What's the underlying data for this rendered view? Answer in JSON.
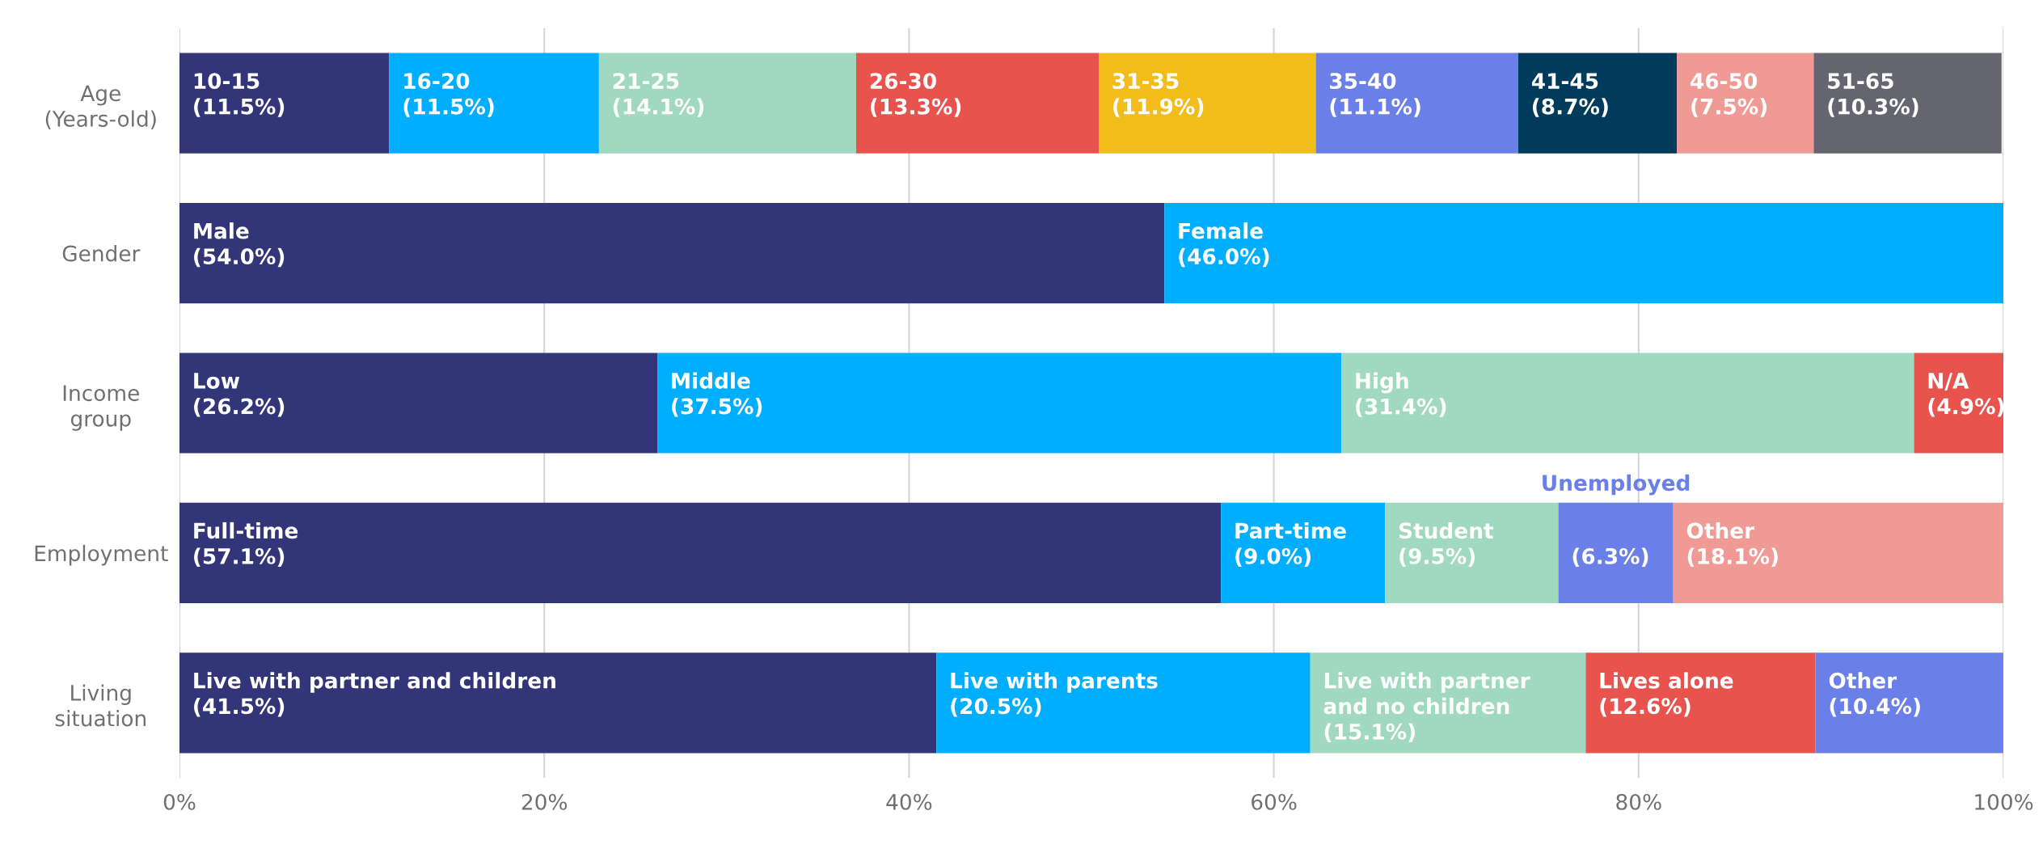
{
  "chart_data": {
    "type": "bar",
    "orientation": "horizontal",
    "stacked": true,
    "grid": "x",
    "categories": [
      "Age\n(Years-old)",
      "Gender",
      "Income\ngroup",
      "Employment",
      "Living\nsituation"
    ],
    "xlim": [
      0,
      100
    ],
    "xticks": [
      {
        "value": 0,
        "label": "0%"
      },
      {
        "value": 20,
        "label": "20%"
      },
      {
        "value": 40,
        "label": "40%"
      },
      {
        "value": 60,
        "label": "60%"
      },
      {
        "value": 80,
        "label": "80%"
      },
      {
        "value": 100,
        "label": "100%"
      }
    ],
    "series": [
      {
        "values": [
          11.5,
          54.0,
          26.2,
          57.1,
          41.5
        ],
        "colors": [
          "#323577",
          "#323577",
          "#323577",
          "#323577",
          "#323577"
        ],
        "value_labels": [
          "10-15\n(11.5%)",
          "Male\n(54.0%)",
          "Low\n(26.2%)",
          "Full-time\n(57.1%)",
          "Live with partner and children\n(41.5%)"
        ]
      },
      {
        "values": [
          11.5,
          46.0,
          37.5,
          9.0,
          20.5
        ],
        "colors": [
          "#00aeff",
          "#00aeff",
          "#00aeff",
          "#00aeff",
          "#00aeff"
        ],
        "value_labels": [
          "16-20\n(11.5%)",
          "Female\n(46.0%)",
          "Middle\n(37.5%)",
          "Part-time\n(9.0%)",
          "Live with parents\n(20.5%)"
        ]
      },
      {
        "values": [
          14.1,
          null,
          31.4,
          9.5,
          15.1
        ],
        "colors": [
          "#a1d9c0",
          null,
          "#a1d9c0",
          "#a1d9c0",
          "#a1d9c0"
        ],
        "value_labels": [
          "21-25\n(14.1%)",
          null,
          "High\n(31.4%)",
          "Student\n(9.5%)",
          "Live with partner\nand no children\n(15.1%)"
        ]
      },
      {
        "values": [
          13.3,
          null,
          4.9,
          6.3,
          12.6
        ],
        "colors": [
          "#e8534e",
          null,
          "#e8534e",
          "#6b7fe8",
          "#e8534e"
        ],
        "value_labels": [
          "26-30\n(13.3%)",
          null,
          "N/A\n(4.9%)",
          "Unemployed\n(6.3%)",
          "Lives alone\n(12.6%)"
        ]
      },
      {
        "values": [
          11.9,
          null,
          null,
          18.1,
          10.4
        ],
        "colors": [
          "#f2bc1b",
          null,
          null,
          "#ef9a94",
          "#6b7fe8"
        ],
        "value_labels": [
          "31-35\n(11.9%)",
          null,
          null,
          "Other\n(18.1%)",
          "Other\n(10.4%)"
        ]
      },
      {
        "values": [
          11.1,
          null,
          null,
          null,
          null
        ],
        "colors": [
          "#6b7fe8",
          null,
          null,
          null,
          null
        ],
        "value_labels": [
          "35-40\n(11.1%)",
          null,
          null,
          null,
          null
        ]
      },
      {
        "values": [
          8.7,
          null,
          null,
          null,
          null
        ],
        "colors": [
          "#003b5c",
          null,
          null,
          null,
          null
        ],
        "value_labels": [
          "41-45\n(8.7%)",
          null,
          null,
          null,
          null
        ]
      },
      {
        "values": [
          7.5,
          null,
          null,
          null,
          null
        ],
        "colors": [
          "#ef9a94",
          null,
          null,
          null,
          null
        ],
        "value_labels": [
          "46-50\n(7.5%)",
          null,
          null,
          null,
          null
        ]
      },
      {
        "values": [
          10.3,
          null,
          null,
          null,
          null
        ],
        "colors": [
          "#65656f",
          null,
          null,
          null,
          null
        ],
        "value_labels": [
          "51-65\n(10.3%)",
          null,
          null,
          null,
          null
        ]
      }
    ]
  }
}
